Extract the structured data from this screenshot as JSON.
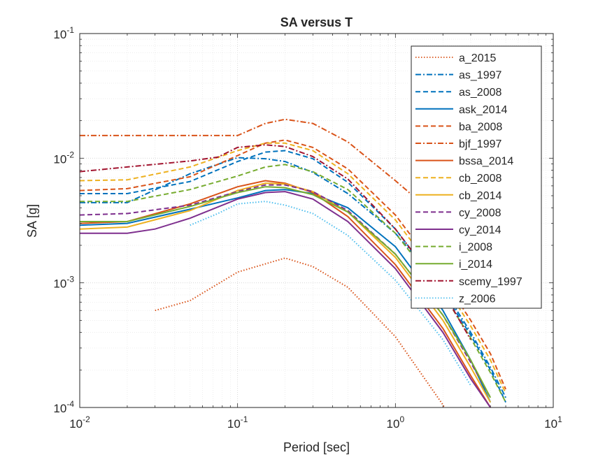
{
  "chart_data": {
    "type": "line",
    "title": "SA versus T",
    "xlabel": "Period [sec]",
    "ylabel": "SA [g]",
    "xscale": "log",
    "yscale": "log",
    "xlim": [
      0.01,
      10
    ],
    "ylim": [
      0.0001,
      0.1
    ],
    "grid": true,
    "legend_position": "top-right",
    "x_ticks": [
      {
        "value": 0.01,
        "base": "10",
        "exp": "-2"
      },
      {
        "value": 0.1,
        "base": "10",
        "exp": "-1"
      },
      {
        "value": 1,
        "base": "10",
        "exp": "0"
      },
      {
        "value": 10,
        "base": "10",
        "exp": "1"
      }
    ],
    "y_ticks": [
      {
        "value": 0.0001,
        "base": "10",
        "exp": "-4"
      },
      {
        "value": 0.001,
        "base": "10",
        "exp": "-3"
      },
      {
        "value": 0.01,
        "base": "10",
        "exp": "-2"
      },
      {
        "value": 0.1,
        "base": "10",
        "exp": "-1"
      }
    ],
    "series": [
      {
        "name": "a_2015",
        "color": "#D95319",
        "dash": "dotted",
        "x": [
          0.03,
          0.05,
          0.1,
          0.2,
          0.3,
          0.5,
          1,
          2,
          3
        ],
        "y": [
          0.0006,
          0.00072,
          0.00122,
          0.00158,
          0.00135,
          0.00092,
          0.00037,
          0.000105,
          4e-05
        ]
      },
      {
        "name": "as_1997",
        "color": "#0072BD",
        "dash": "dashdot",
        "x": [
          0.01,
          0.02,
          0.05,
          0.1,
          0.15,
          0.2,
          0.3,
          0.5,
          1,
          2,
          3,
          4,
          5
        ],
        "y": [
          0.0044,
          0.0044,
          0.0075,
          0.0101,
          0.0099,
          0.0094,
          0.0077,
          0.0052,
          0.0025,
          0.0009,
          0.0004,
          0.00021,
          0.00012
        ]
      },
      {
        "name": "as_2008",
        "color": "#0072BD",
        "dash": "dashed",
        "x": [
          0.01,
          0.02,
          0.05,
          0.1,
          0.15,
          0.2,
          0.3,
          0.5,
          1,
          2,
          3,
          4,
          5
        ],
        "y": [
          0.0052,
          0.0052,
          0.0065,
          0.0094,
          0.0112,
          0.0115,
          0.0099,
          0.0064,
          0.0027,
          0.00085,
          0.00038,
          0.0002,
          0.00011
        ]
      },
      {
        "name": "ask_2014",
        "color": "#0072BD",
        "dash": "solid",
        "x": [
          0.01,
          0.02,
          0.05,
          0.1,
          0.15,
          0.2,
          0.3,
          0.5,
          1,
          2,
          3,
          4
        ],
        "y": [
          0.0029,
          0.003,
          0.0039,
          0.0048,
          0.0055,
          0.0056,
          0.0052,
          0.004,
          0.00195,
          0.0006,
          0.00024,
          0.00011
        ]
      },
      {
        "name": "ba_2008",
        "color": "#D95319",
        "dash": "dashed",
        "x": [
          0.01,
          0.02,
          0.05,
          0.1,
          0.15,
          0.2,
          0.3,
          0.5,
          1,
          2,
          3,
          4,
          5
        ],
        "y": [
          0.0055,
          0.0057,
          0.0071,
          0.0105,
          0.0132,
          0.014,
          0.0122,
          0.0082,
          0.0035,
          0.0011,
          0.0005,
          0.00027,
          0.00014
        ]
      },
      {
        "name": "bjf_1997",
        "color": "#D95319",
        "dash": "dashdot",
        "x": [
          0.01,
          0.05,
          0.1,
          0.15,
          0.2,
          0.3,
          0.5,
          1,
          2
        ],
        "y": [
          0.0152,
          0.0152,
          0.0152,
          0.019,
          0.0205,
          0.019,
          0.0135,
          0.0066,
          0.0031
        ]
      },
      {
        "name": "bssa_2014",
        "color": "#D95319",
        "dash": "solid",
        "x": [
          0.01,
          0.02,
          0.05,
          0.1,
          0.15,
          0.2,
          0.3,
          0.5,
          1,
          2,
          3,
          4
        ],
        "y": [
          0.003,
          0.0031,
          0.0043,
          0.0059,
          0.0066,
          0.0063,
          0.0053,
          0.0034,
          0.0014,
          0.00043,
          0.00018,
          0.0001
        ]
      },
      {
        "name": "cb_2008",
        "color": "#EDB120",
        "dash": "dashed",
        "x": [
          0.01,
          0.02,
          0.05,
          0.1,
          0.15,
          0.2,
          0.3,
          0.5,
          1,
          2,
          3,
          4,
          5
        ],
        "y": [
          0.0066,
          0.0067,
          0.0085,
          0.0115,
          0.0132,
          0.0132,
          0.0115,
          0.0075,
          0.0032,
          0.001,
          0.00045,
          0.00024,
          0.00013
        ]
      },
      {
        "name": "cb_2014",
        "color": "#EDB120",
        "dash": "solid",
        "x": [
          0.01,
          0.02,
          0.05,
          0.1,
          0.15,
          0.2,
          0.3,
          0.5,
          1,
          2,
          3,
          4
        ],
        "y": [
          0.0027,
          0.0028,
          0.0038,
          0.0055,
          0.0063,
          0.0062,
          0.0054,
          0.0037,
          0.0016,
          0.0005,
          0.00021,
          0.00011
        ]
      },
      {
        "name": "cy_2008",
        "color": "#7E2F8E",
        "dash": "dashed",
        "x": [
          0.01,
          0.02,
          0.05,
          0.1,
          0.15,
          0.2,
          0.3,
          0.5,
          1,
          2,
          3,
          4
        ],
        "y": [
          0.0035,
          0.0036,
          0.0042,
          0.0054,
          0.0061,
          0.0061,
          0.0054,
          0.0038,
          0.0017,
          0.00055,
          0.00023,
          0.00012
        ]
      },
      {
        "name": "cy_2014",
        "color": "#7E2F8E",
        "dash": "solid",
        "x": [
          0.01,
          0.02,
          0.03,
          0.05,
          0.1,
          0.15,
          0.2,
          0.3,
          0.5,
          1,
          2,
          3,
          4
        ],
        "y": [
          0.0025,
          0.0025,
          0.0027,
          0.0033,
          0.0047,
          0.0053,
          0.0054,
          0.0047,
          0.0031,
          0.0013,
          0.0004,
          0.00017,
          0.0001
        ]
      },
      {
        "name": "i_2008",
        "color": "#77AC30",
        "dash": "dashed",
        "x": [
          0.01,
          0.02,
          0.05,
          0.1,
          0.15,
          0.2,
          0.3,
          0.5,
          1,
          2,
          3,
          4,
          5
        ],
        "y": [
          0.0045,
          0.0045,
          0.0056,
          0.0072,
          0.0085,
          0.0089,
          0.0078,
          0.0056,
          0.0025,
          0.00082,
          0.00036,
          0.00019,
          0.00011
        ]
      },
      {
        "name": "i_2014",
        "color": "#77AC30",
        "dash": "solid",
        "x": [
          0.01,
          0.02,
          0.05,
          0.1,
          0.15,
          0.2,
          0.3,
          0.5,
          1,
          2,
          3,
          4
        ],
        "y": [
          0.0031,
          0.0031,
          0.0041,
          0.0053,
          0.0059,
          0.0058,
          0.0051,
          0.0037,
          0.0017,
          0.00055,
          0.00024,
          0.00012
        ]
      },
      {
        "name": "scemy_1997",
        "color": "#A2142F",
        "dash": "dashdot",
        "x": [
          0.01,
          0.02,
          0.05,
          0.075,
          0.1,
          0.15,
          0.2,
          0.3,
          0.5,
          1,
          2,
          3
        ],
        "y": [
          0.0078,
          0.0085,
          0.0095,
          0.0102,
          0.0122,
          0.0128,
          0.0124,
          0.0103,
          0.0068,
          0.0027,
          0.00085,
          0.00035
        ]
      },
      {
        "name": "z_2006",
        "color": "#4DBEEE",
        "dash": "dotted",
        "x": [
          0.05,
          0.075,
          0.1,
          0.15,
          0.2,
          0.3,
          0.5,
          1,
          2,
          3
        ],
        "y": [
          0.0029,
          0.0036,
          0.0043,
          0.0045,
          0.0042,
          0.0036,
          0.0024,
          0.00105,
          0.00035,
          0.00015
        ]
      }
    ]
  }
}
